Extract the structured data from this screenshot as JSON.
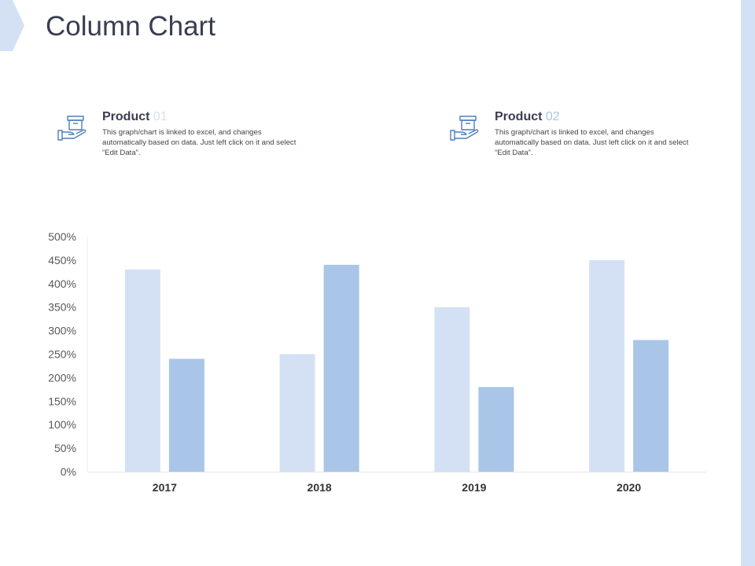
{
  "header": {
    "title": "Column Chart"
  },
  "legend": [
    {
      "label": "Product",
      "number": "01",
      "color": "#d4e1f5",
      "description": "This graph/chart is linked to excel, and changes automatically based on data. Just left click on it and select “Edit Data”.",
      "icon": "hand-holding-box-icon"
    },
    {
      "label": "Product",
      "number": "02",
      "color": "#a9c5e8",
      "description": "This graph/chart is linked to excel, and changes automatically based on data. Just left click on it and select “Edit Data”.",
      "icon": "hand-holding-box-icon"
    }
  ],
  "colors": {
    "accent_light": "#d4e1f5",
    "accent_dark": "#a9c5e8",
    "icon_blue": "#4a7fc1"
  },
  "chart_data": {
    "type": "bar",
    "title": "Column Chart",
    "categories": [
      "2017",
      "2018",
      "2019",
      "2020"
    ],
    "series": [
      {
        "name": "Product 01",
        "values": [
          430,
          250,
          350,
          450
        ],
        "color": "#d4e1f5"
      },
      {
        "name": "Product 02",
        "values": [
          240,
          440,
          180,
          280
        ],
        "color": "#a9c5e8"
      }
    ],
    "xlabel": "",
    "ylabel": "",
    "ylim": [
      0,
      500
    ],
    "ytick_labels": [
      "0%",
      "50%",
      "100%",
      "150%",
      "200%",
      "250%",
      "300%",
      "350%",
      "400%",
      "450%",
      "500%"
    ],
    "grid": false,
    "legend_position": "top"
  }
}
